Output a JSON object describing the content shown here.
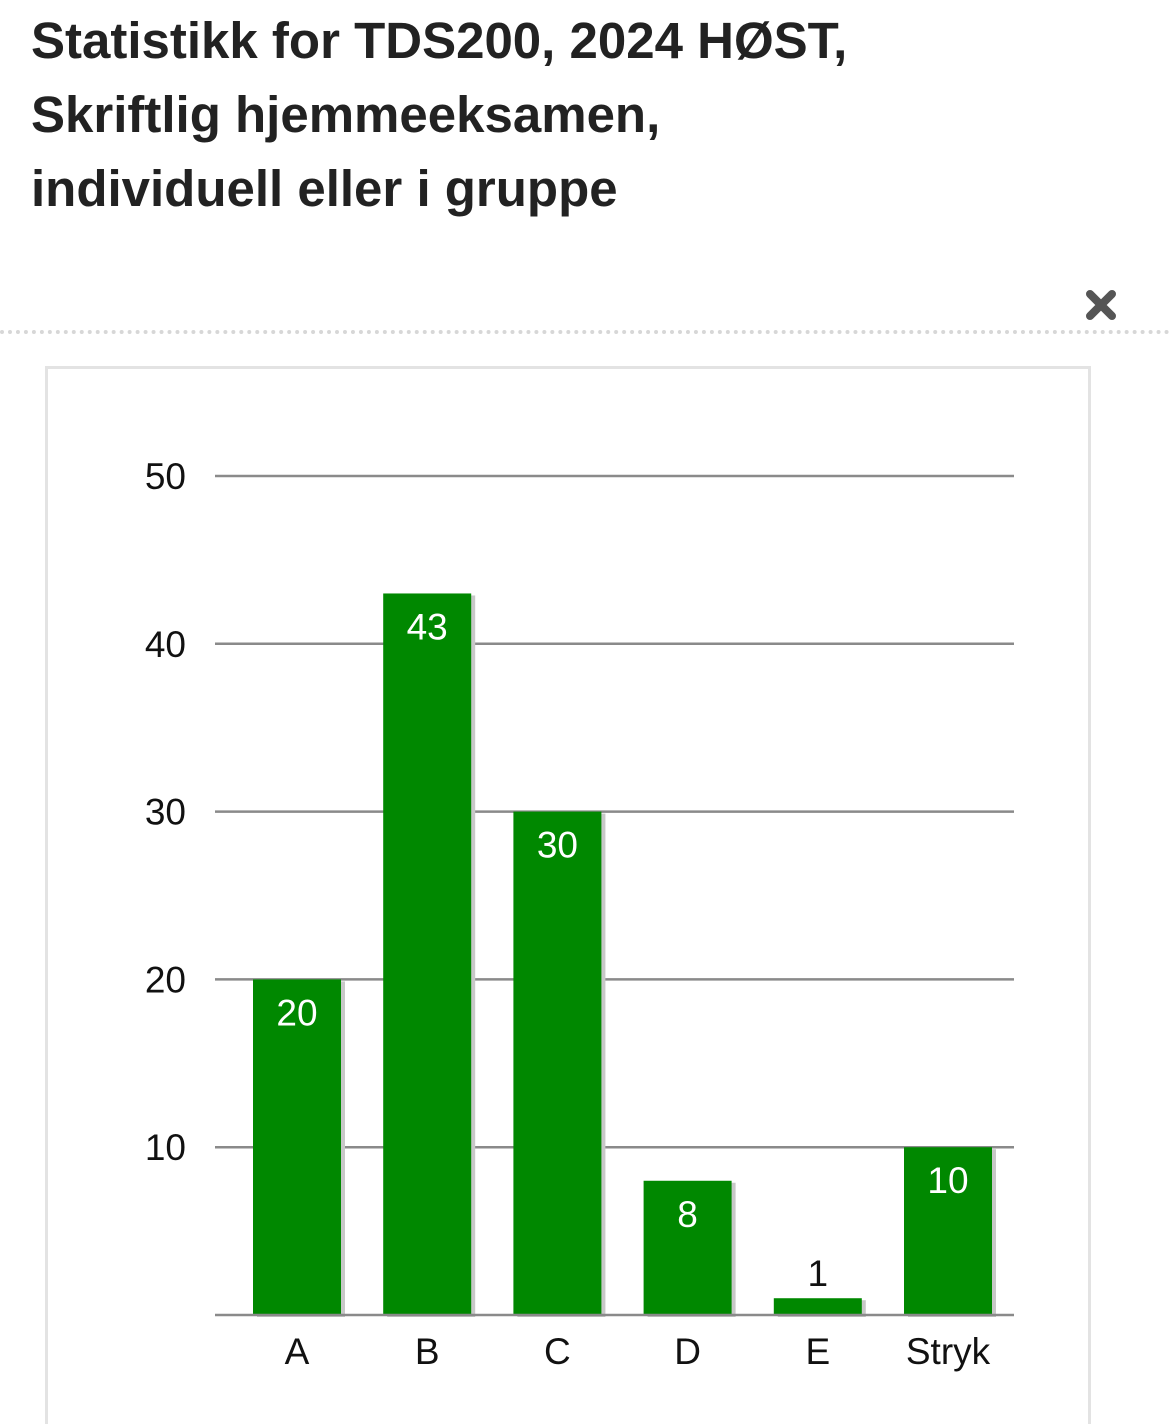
{
  "header": {
    "title_lines": [
      "Statistikk for TDS200, 2024 HØST,",
      "Skriftlig hjemmeeksamen,",
      "individuell eller i gruppe"
    ]
  },
  "icons": {
    "close": "close-icon"
  },
  "colors": {
    "bar": "#008800",
    "bar_shadow": "#c8c8c8",
    "grid": "#8a8a8a",
    "label_inside": "#ffffff",
    "label_outside": "#111111"
  },
  "chart_data": {
    "type": "bar",
    "title": "",
    "xlabel": "",
    "ylabel": "",
    "categories": [
      "A",
      "B",
      "C",
      "D",
      "E",
      "Stryk"
    ],
    "values": [
      20,
      43,
      30,
      8,
      1,
      10
    ],
    "ylim": [
      0,
      50
    ],
    "yticks": [
      10,
      20,
      30,
      40,
      50
    ],
    "grid": true,
    "legend": "none",
    "data_labels": true
  }
}
